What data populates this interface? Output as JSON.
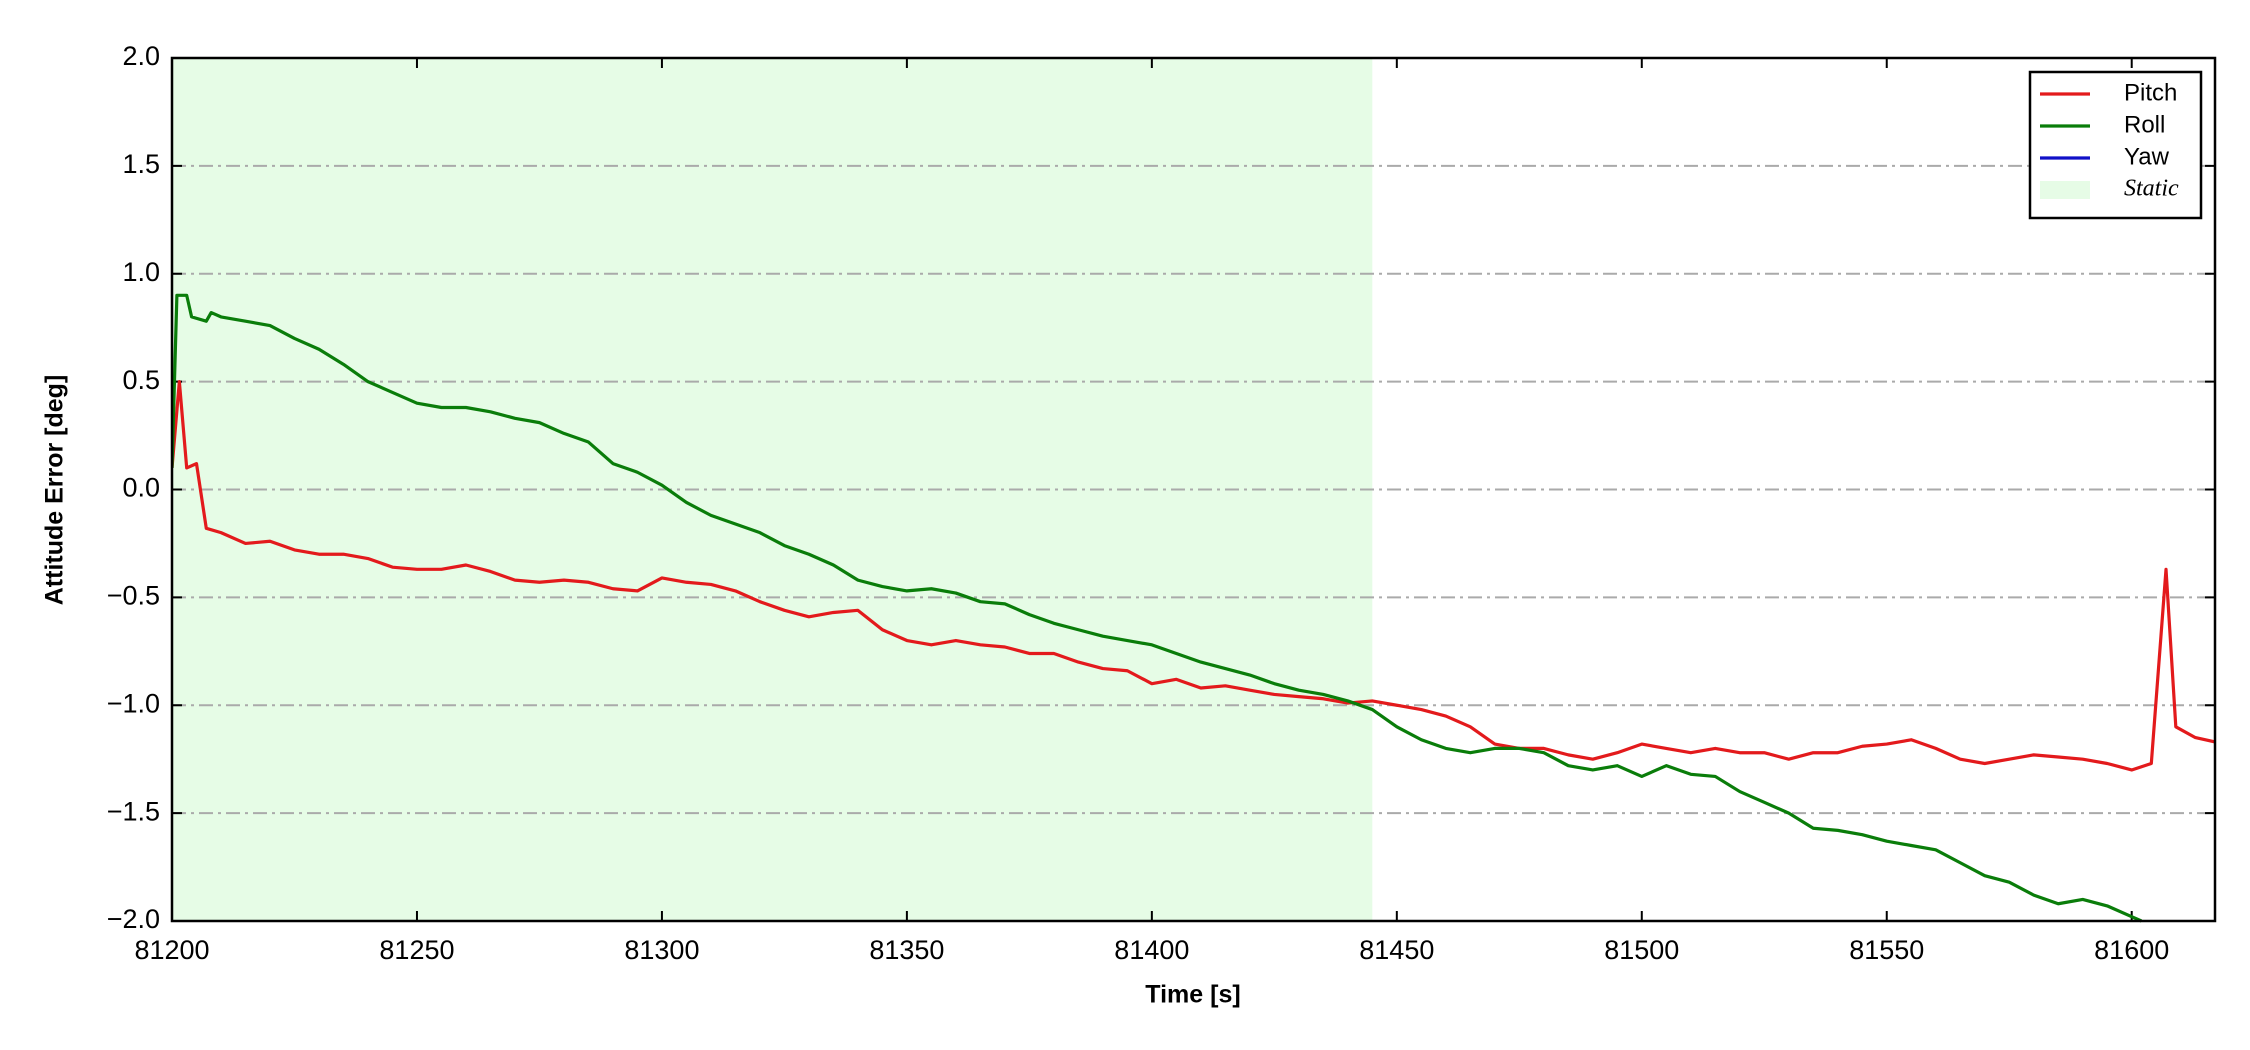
{
  "chart_data": {
    "type": "line",
    "xlabel": "Time [s]",
    "ylabel": "Attitude Error [deg]",
    "xlim": [
      81200,
      81617
    ],
    "ylim": [
      -2.0,
      2.0
    ],
    "xticks": [
      81200,
      81250,
      81300,
      81350,
      81400,
      81450,
      81500,
      81550,
      81600
    ],
    "yticks": [
      {
        "value": -2.0,
        "label": "−2.0"
      },
      {
        "value": -1.5,
        "label": "−1.5"
      },
      {
        "value": -1.0,
        "label": "−1.0"
      },
      {
        "value": -0.5,
        "label": "−0.5"
      },
      {
        "value": 0.0,
        "label": "0.0"
      },
      0.5,
      {
        "value": 1.0,
        "label": "1.0"
      },
      1.5,
      {
        "value": 2.0,
        "label": "2.0"
      }
    ],
    "grid": true,
    "legend": "upper right",
    "spans": [
      {
        "name": "Static",
        "color": "#e6fce6",
        "x": [
          81200,
          81445
        ]
      }
    ],
    "series": [
      {
        "name": "Pitch",
        "color": "#e31a1c",
        "x": [
          81200,
          81201.5,
          81203,
          81205,
          81207,
          81210,
          81215,
          81220,
          81225,
          81230,
          81235,
          81240,
          81245,
          81250,
          81255,
          81260,
          81265,
          81270,
          81275,
          81280,
          81285,
          81290,
          81295,
          81300,
          81305,
          81310,
          81315,
          81320,
          81325,
          81330,
          81335,
          81340,
          81345,
          81350,
          81355,
          81360,
          81365,
          81370,
          81375,
          81380,
          81385,
          81390,
          81395,
          81400,
          81405,
          81410,
          81415,
          81420,
          81425,
          81430,
          81435,
          81440,
          81445,
          81450,
          81455,
          81460,
          81465,
          81470,
          81475,
          81480,
          81485,
          81490,
          81495,
          81500,
          81505,
          81510,
          81515,
          81520,
          81525,
          81530,
          81535,
          81540,
          81545,
          81550,
          81555,
          81560,
          81565,
          81570,
          81575,
          81580,
          81585,
          81590,
          81595,
          81600,
          81604,
          81607,
          81609,
          81613,
          81617
        ],
        "values": [
          0.1,
          0.5,
          0.1,
          0.12,
          -0.18,
          -0.2,
          -0.25,
          -0.24,
          -0.28,
          -0.3,
          -0.3,
          -0.32,
          -0.36,
          -0.37,
          -0.37,
          -0.35,
          -0.38,
          -0.42,
          -0.43,
          -0.42,
          -0.43,
          -0.46,
          -0.47,
          -0.41,
          -0.43,
          -0.44,
          -0.47,
          -0.52,
          -0.56,
          -0.59,
          -0.57,
          -0.56,
          -0.65,
          -0.7,
          -0.72,
          -0.7,
          -0.72,
          -0.73,
          -0.76,
          -0.76,
          -0.8,
          -0.83,
          -0.84,
          -0.9,
          -0.88,
          -0.92,
          -0.91,
          -0.93,
          -0.95,
          -0.96,
          -0.97,
          -0.99,
          -0.98,
          -1.0,
          -1.02,
          -1.05,
          -1.1,
          -1.18,
          -1.2,
          -1.2,
          -1.23,
          -1.25,
          -1.22,
          -1.18,
          -1.2,
          -1.22,
          -1.2,
          -1.22,
          -1.22,
          -1.25,
          -1.22,
          -1.22,
          -1.19,
          -1.18,
          -1.16,
          -1.2,
          -1.25,
          -1.27,
          -1.25,
          -1.23,
          -1.24,
          -1.25,
          -1.27,
          -1.3,
          -1.27,
          -0.37,
          -1.1,
          -1.15,
          -1.17
        ]
      },
      {
        "name": "Roll",
        "color": "#0a7d0a",
        "x": [
          81200,
          81201,
          81203,
          81204,
          81207,
          81208,
          81210,
          81215,
          81220,
          81225,
          81230,
          81235,
          81240,
          81245,
          81250,
          81255,
          81260,
          81265,
          81270,
          81275,
          81280,
          81285,
          81290,
          81295,
          81300,
          81305,
          81310,
          81315,
          81320,
          81325,
          81330,
          81335,
          81340,
          81345,
          81350,
          81355,
          81360,
          81365,
          81370,
          81375,
          81380,
          81385,
          81390,
          81395,
          81400,
          81405,
          81410,
          81415,
          81420,
          81425,
          81430,
          81435,
          81440,
          81445,
          81450,
          81455,
          81460,
          81465,
          81470,
          81475,
          81480,
          81485,
          81490,
          81495,
          81500,
          81505,
          81510,
          81515,
          81520,
          81525,
          81530,
          81535,
          81540,
          81545,
          81550,
          81555,
          81560,
          81565,
          81570,
          81575,
          81580,
          81585,
          81590,
          81595,
          81600,
          81602
        ],
        "values": [
          0.1,
          0.9,
          0.9,
          0.8,
          0.78,
          0.82,
          0.8,
          0.78,
          0.76,
          0.7,
          0.65,
          0.58,
          0.5,
          0.45,
          0.4,
          0.38,
          0.38,
          0.36,
          0.33,
          0.31,
          0.26,
          0.22,
          0.12,
          0.08,
          0.02,
          -0.06,
          -0.12,
          -0.16,
          -0.2,
          -0.26,
          -0.3,
          -0.35,
          -0.42,
          -0.45,
          -0.47,
          -0.46,
          -0.48,
          -0.52,
          -0.53,
          -0.58,
          -0.62,
          -0.65,
          -0.68,
          -0.7,
          -0.72,
          -0.76,
          -0.8,
          -0.83,
          -0.86,
          -0.9,
          -0.93,
          -0.95,
          -0.98,
          -1.02,
          -1.1,
          -1.16,
          -1.2,
          -1.22,
          -1.2,
          -1.2,
          -1.22,
          -1.28,
          -1.3,
          -1.28,
          -1.33,
          -1.28,
          -1.32,
          -1.33,
          -1.4,
          -1.45,
          -1.5,
          -1.57,
          -1.58,
          -1.6,
          -1.63,
          -1.65,
          -1.67,
          -1.73,
          -1.79,
          -1.82,
          -1.88,
          -1.92,
          -1.9,
          -1.93,
          -1.98,
          -2.0
        ]
      },
      {
        "name": "Yaw",
        "color": "#1010c8",
        "x": [],
        "values": []
      }
    ]
  }
}
